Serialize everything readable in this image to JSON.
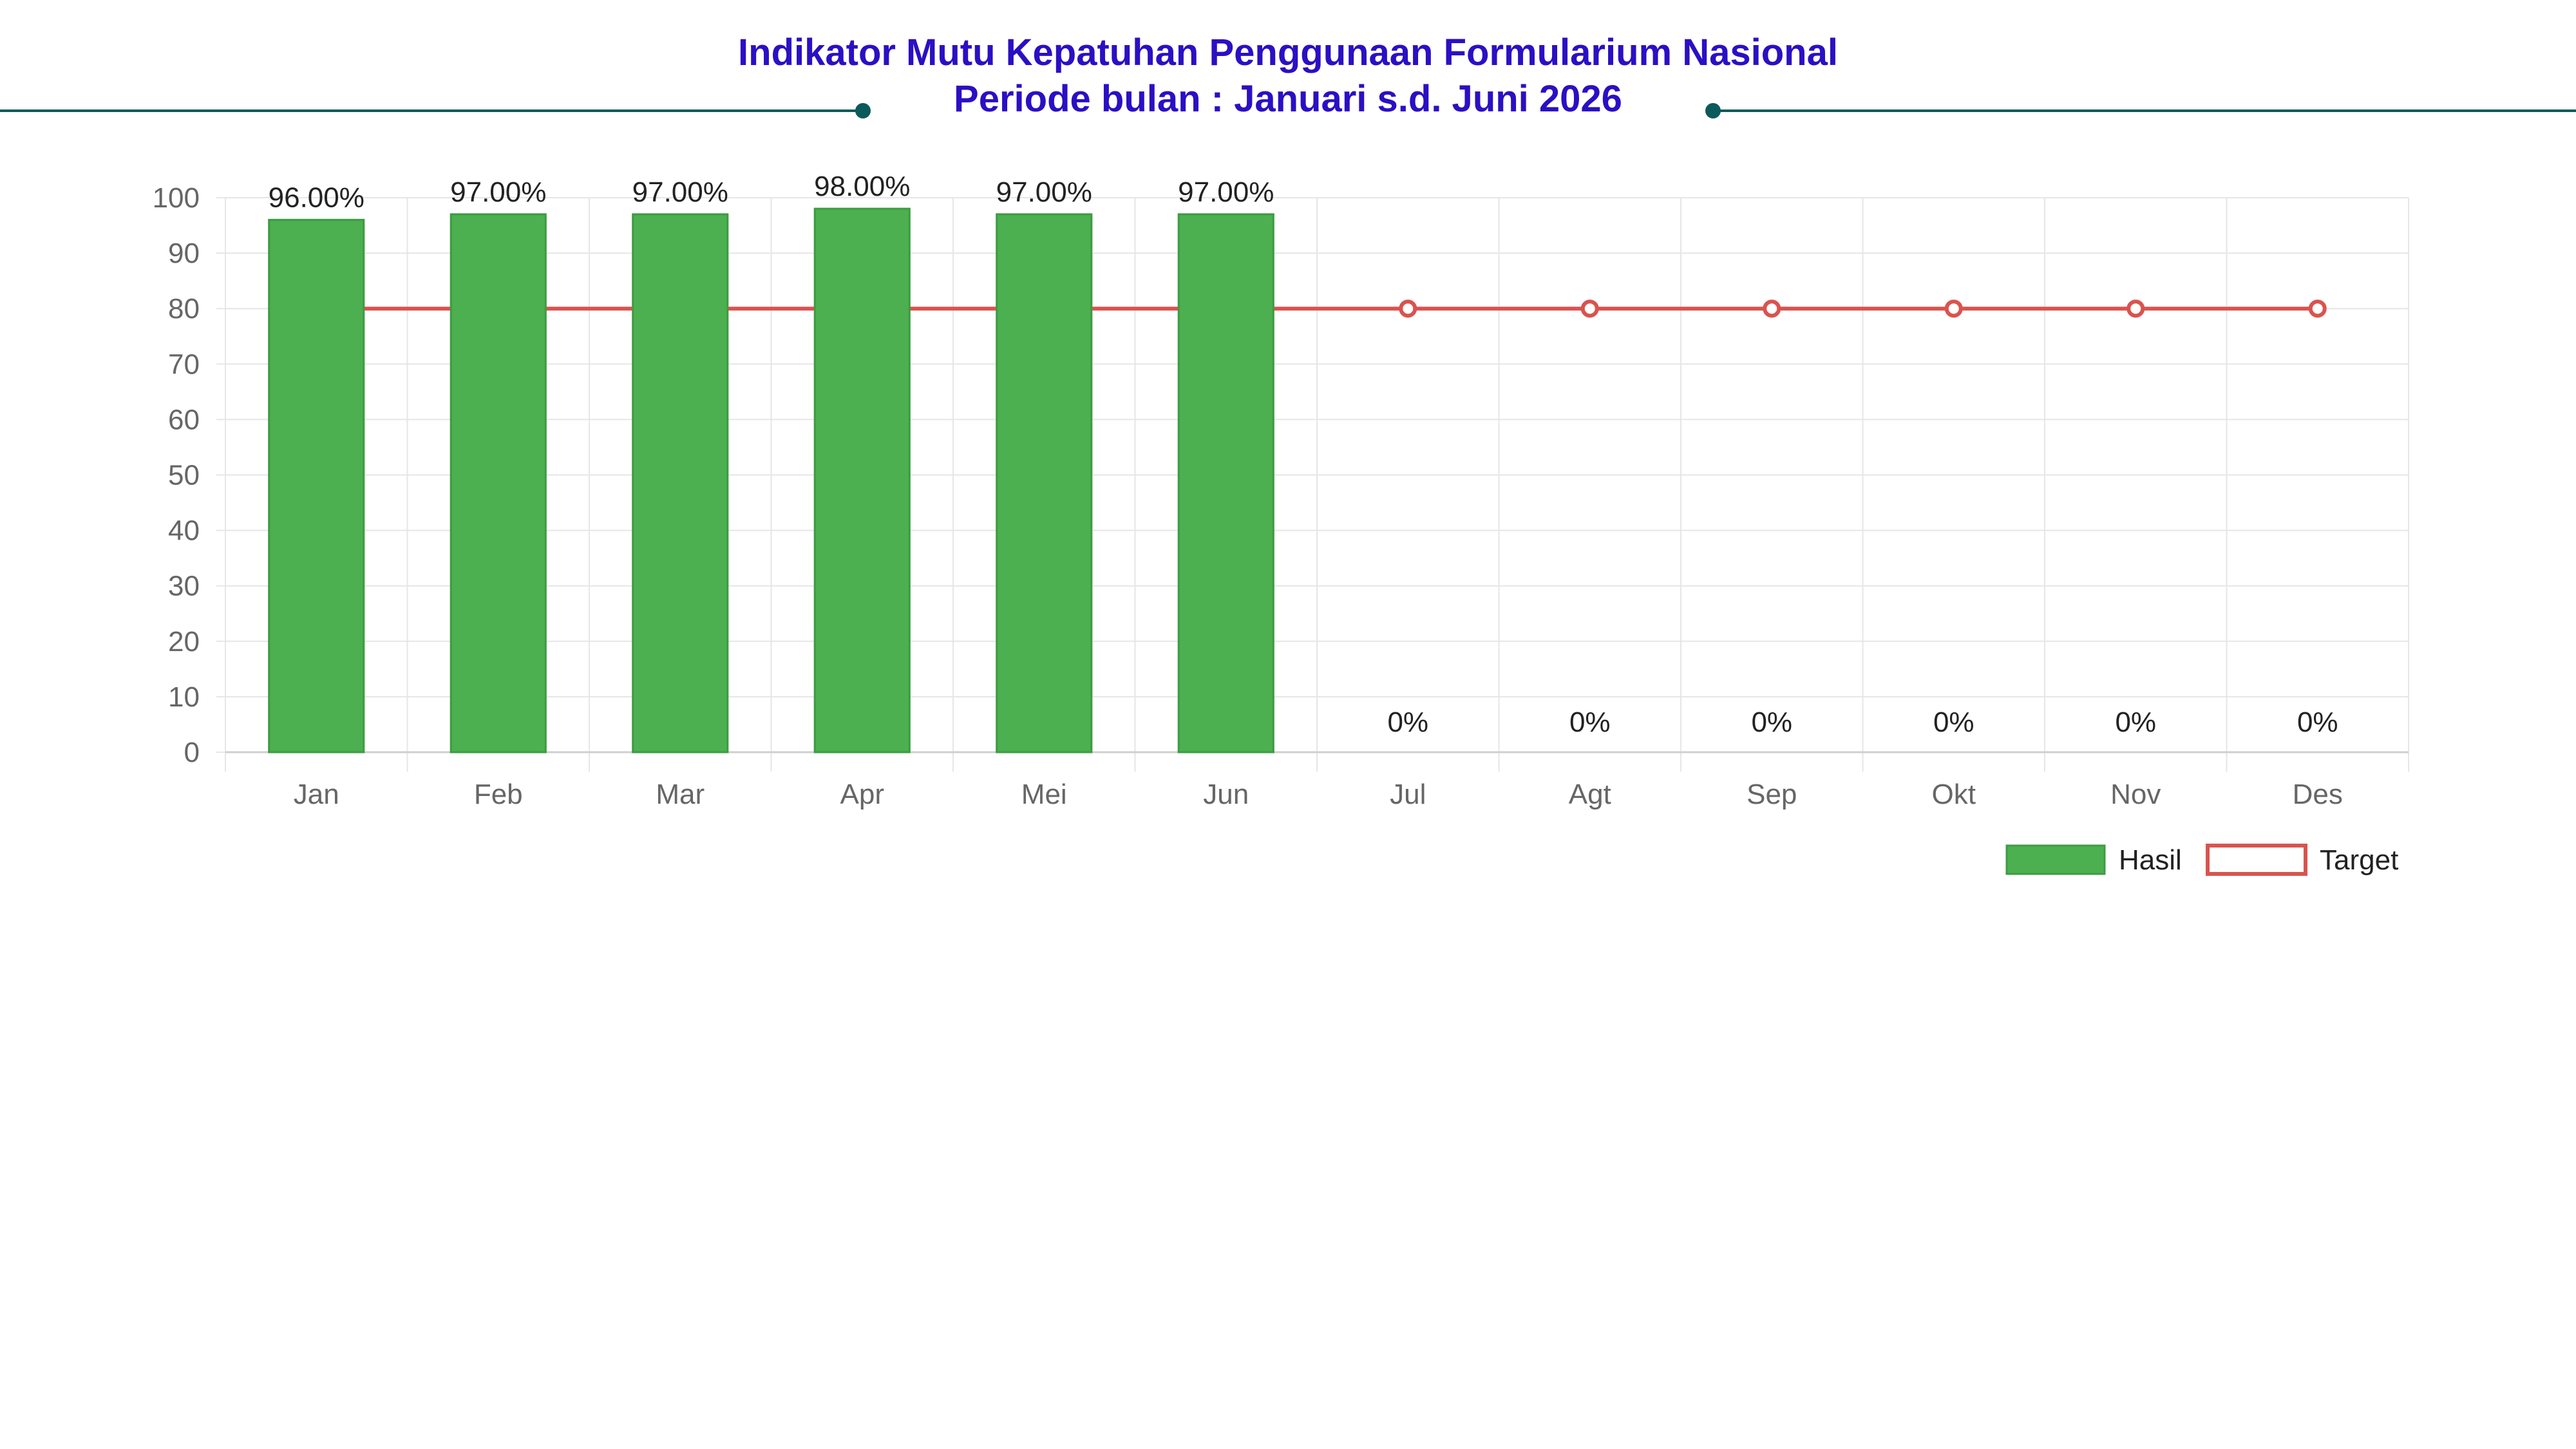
{
  "header": {
    "title_line1": "Indikator Mutu Kepatuhan Penggunaan Formularium Nasional",
    "title_line2": "Periode bulan : Januari s.d. Juni 2026",
    "title_color": "#2b0fc4",
    "rule_color": "#0b5a5a"
  },
  "colors": {
    "bar": "#4caf50",
    "bar_border": "#3d9c42",
    "target_line": "#d9534f",
    "grid": "#e6e6e6",
    "tick_text": "#666666"
  },
  "chart_data": {
    "type": "bar",
    "title": "Indikator Mutu Kepatuhan Penggunaan Formularium Nasional",
    "subtitle": "Periode bulan : Januari s.d. Juni 2026",
    "categories": [
      "Jan",
      "Feb",
      "Mar",
      "Apr",
      "Mei",
      "Jun",
      "Jul",
      "Agt",
      "Sep",
      "Okt",
      "Nov",
      "Des"
    ],
    "series": [
      {
        "name": "Hasil",
        "type": "bar",
        "values": [
          96,
          97,
          97,
          98,
          97,
          97,
          0,
          0,
          0,
          0,
          0,
          0
        ],
        "labels": [
          "96.00%",
          "97.00%",
          "97.00%",
          "98.00%",
          "97.00%",
          "97.00%",
          "0%",
          "0%",
          "0%",
          "0%",
          "0%",
          "0%"
        ]
      },
      {
        "name": "Target",
        "type": "line",
        "values": [
          80,
          80,
          80,
          80,
          80,
          80,
          80,
          80,
          80,
          80,
          80,
          80
        ]
      }
    ],
    "ylim": [
      0,
      100
    ],
    "yticks": [
      0,
      10,
      20,
      30,
      40,
      50,
      60,
      70,
      80,
      90,
      100
    ],
    "xlabel": "",
    "ylabel": "",
    "grid": true,
    "legend_position": "bottom-right"
  }
}
